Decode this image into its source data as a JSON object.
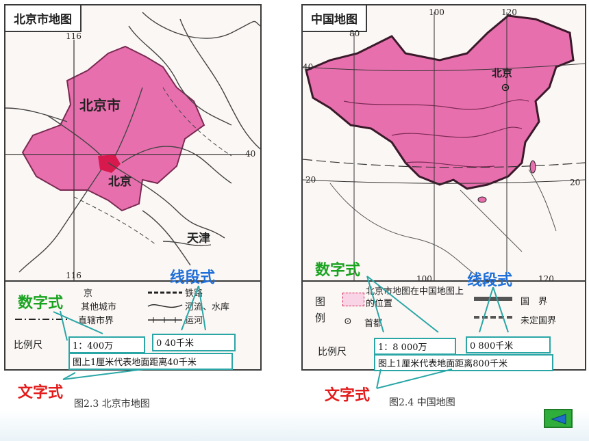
{
  "left_map": {
    "title": "北京市地图",
    "lon_top": "116",
    "lon_bottom": "116",
    "lat_right": "40",
    "labels": {
      "city": "北京市",
      "capital": "北京",
      "tianjin": "天津"
    },
    "legend": {
      "items": [
        "京",
        "其他城市",
        "直辖市界",
        "铁路",
        "河流、水库",
        "运河"
      ],
      "scale_label": "比例尺",
      "numeric_scale": "1：400万",
      "line_scale": "0        40千米",
      "text_scale": "图上1厘米代表地面距离40千米"
    },
    "caption": "图2.3  北京市地图"
  },
  "right_map": {
    "title": "中国地图",
    "lon_ticks": [
      "80",
      "100",
      "120",
      "100",
      "120"
    ],
    "lat_ticks": [
      "40",
      "20",
      "20"
    ],
    "labels": {
      "capital": "北京"
    },
    "legend": {
      "tuli": "图",
      "li": "例",
      "beijing_pos": "北京市地图在中国地图上的位置",
      "capital": "首都",
      "border": "国　界",
      "undetermined": "未定国界",
      "scale_label": "比例尺",
      "numeric_scale": "1：8 000万",
      "line_scale": "0        800千米",
      "text_scale": "图上1厘米代表地面距离800千米"
    },
    "caption": "图2.4  中国地图"
  },
  "annotations": {
    "numeric_left": "数字式",
    "line_left": "线段式",
    "text_left": "文字式",
    "numeric_right": "数字式",
    "line_right": "线段式",
    "text_right": "文字式"
  },
  "colors": {
    "map_fill": "#e86fae",
    "capital_fill": "#d8194e",
    "annotation_line": "#2aa6a6"
  },
  "nav": {
    "back_icon": "triangle-left-icon"
  }
}
